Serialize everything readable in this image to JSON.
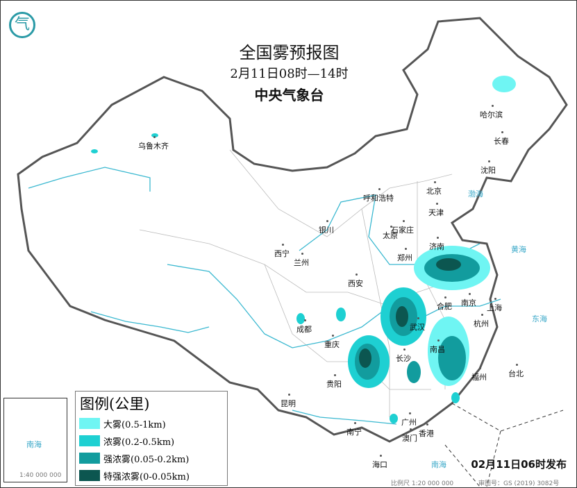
{
  "header": {
    "title": "全国雾预报图",
    "time_range": "2月11日08时—14时",
    "issuer": "中央气象台"
  },
  "logo": {
    "text": "气"
  },
  "cities": [
    "乌鲁木齐",
    "哈尔滨",
    "长春",
    "沈阳",
    "呼和浩特",
    "北京",
    "天津",
    "石家庄",
    "太原",
    "银川",
    "西宁",
    "兰州",
    "济南",
    "郑州",
    "西安",
    "合肥",
    "南京",
    "上海",
    "武汉",
    "杭州",
    "成都",
    "重庆",
    "长沙",
    "南昌",
    "贵阳",
    "福州",
    "台北",
    "昆明",
    "南宁",
    "广州",
    "香港",
    "澳门",
    "海口"
  ],
  "seas": [
    "渤海",
    "黄海",
    "东海",
    "南海",
    "南海"
  ],
  "legend": {
    "title": "图例(公里)",
    "items": [
      {
        "label": "大雾(0.5-1km)",
        "color": "#6ff5f3"
      },
      {
        "label": "浓雾(0.2-0.5km)",
        "color": "#1ed0d2"
      },
      {
        "label": "强浓雾(0.05-0.2km)",
        "color": "#129c9e"
      },
      {
        "label": "特强浓雾(0-0.05km)",
        "color": "#0c5650"
      }
    ]
  },
  "inset": {
    "scale": "1:40 000 000"
  },
  "footer": {
    "scale": "比例尺 1:20 000 000",
    "map_no": "审图号：GS (2019) 3082号",
    "issued": "02月11日06时发布"
  }
}
